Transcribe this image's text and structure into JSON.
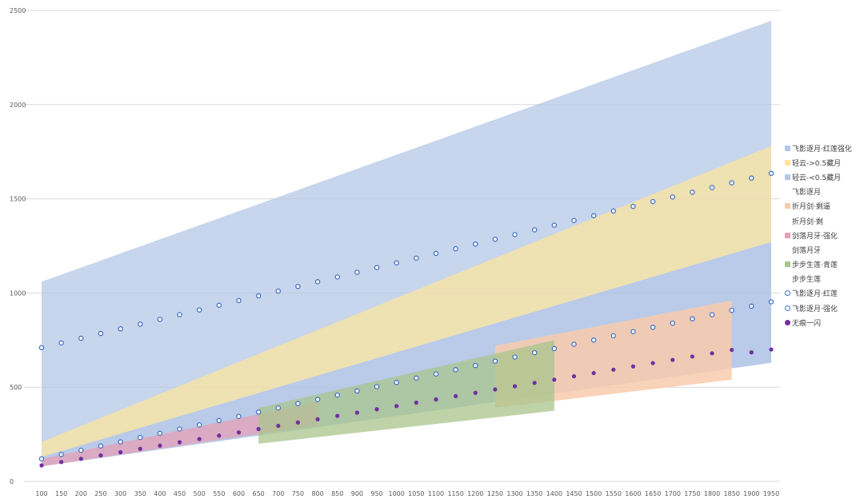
{
  "chart_data": {
    "type": "area",
    "title": "",
    "xlabel": "",
    "ylabel": "",
    "ylim": [
      0,
      2500
    ],
    "y_ticks": [
      0,
      500,
      1000,
      1500,
      2000,
      2500
    ],
    "x_ticks": [
      100,
      150,
      200,
      250,
      300,
      350,
      400,
      450,
      500,
      550,
      600,
      650,
      700,
      750,
      800,
      850,
      900,
      950,
      1000,
      1050,
      1100,
      1150,
      1200,
      1250,
      1300,
      1350,
      1400,
      1450,
      1500,
      1550,
      1600,
      1650,
      1700,
      1750,
      1800,
      1850,
      1900,
      1950
    ],
    "grid": "horizontal",
    "legend_position": "right",
    "bands": [
      {
        "name": "飞影逐月·红莲强化",
        "color": "#B4C7E7",
        "opacity": 0.75,
        "x": [
          100,
          1950
        ],
        "low": [
          80,
          630
        ],
        "high": [
          1060,
          2445
        ]
      },
      {
        "name": "轻云->0.5藏月",
        "color": "#FFE699",
        "opacity": 0.7,
        "x": [
          100,
          1950
        ],
        "low": [
          130,
          1270
        ],
        "high": [
          210,
          1780
        ]
      },
      {
        "name": "轻云-<0.5藏月",
        "color": "#B4C7E7",
        "opacity": 0.75,
        "x": [
          100,
          1950
        ],
        "low": [
          80,
          630
        ],
        "high": [
          130,
          1270
        ]
      },
      {
        "name": "折月剑·剩逼",
        "color": "#F8CBAD",
        "opacity": 0.85,
        "x": [
          1250,
          1850
        ],
        "low": [
          390,
          540
        ],
        "high": [
          720,
          960
        ]
      },
      {
        "name": "剑落月牙·强化",
        "color": "#E6A0B4",
        "opacity": 0.75,
        "x": [
          100,
          800
        ],
        "low": [
          80,
          300
        ],
        "high": [
          120,
          420
        ]
      },
      {
        "name": "步步生莲·青莲",
        "color": "#A9C48C",
        "opacity": 0.75,
        "x": [
          650,
          1400
        ],
        "low": [
          200,
          375
        ],
        "high": [
          390,
          750
        ]
      }
    ],
    "legend_text_only": [
      "飞影逐月",
      "折月剑·剩",
      "剑落月牙",
      "步步生莲"
    ],
    "scatter": [
      {
        "name": "飞影逐月·红莲",
        "style": "ring",
        "color": "#4472C4",
        "x": [
          100,
          150,
          200,
          250,
          300,
          350,
          400,
          450,
          500,
          550,
          600,
          650,
          700,
          750,
          800,
          850,
          900,
          950,
          1000,
          1050,
          1100,
          1150,
          1200,
          1250,
          1300,
          1350,
          1400,
          1450,
          1500,
          1550,
          1600,
          1650,
          1700,
          1750,
          1800,
          1850,
          1900,
          1950
        ],
        "y": [
          710,
          735,
          760,
          785,
          810,
          835,
          860,
          885,
          910,
          935,
          960,
          985,
          1010,
          1035,
          1060,
          1085,
          1110,
          1135,
          1160,
          1185,
          1210,
          1235,
          1260,
          1285,
          1310,
          1335,
          1360,
          1385,
          1410,
          1435,
          1460,
          1485,
          1510,
          1535,
          1560,
          1585,
          1610,
          1635
        ]
      },
      {
        "name": "飞影逐月·强化",
        "style": "ring",
        "color": "#4472C4",
        "x": [
          100,
          150,
          200,
          250,
          300,
          350,
          400,
          450,
          500,
          550,
          600,
          650,
          700,
          750,
          800,
          850,
          900,
          950,
          1000,
          1050,
          1100,
          1150,
          1200,
          1250,
          1300,
          1350,
          1400,
          1450,
          1500,
          1550,
          1600,
          1650,
          1700,
          1750,
          1800,
          1850,
          1900,
          1950
        ],
        "y": [
          120,
          143,
          165,
          188,
          210,
          233,
          255,
          278,
          300,
          323,
          345,
          368,
          390,
          413,
          435,
          458,
          480,
          503,
          525,
          548,
          570,
          593,
          615,
          638,
          660,
          683,
          705,
          728,
          750,
          773,
          795,
          818,
          840,
          863,
          885,
          908,
          930,
          953
        ]
      },
      {
        "name": "无痕一闪",
        "style": "dot",
        "color": "#7030A0",
        "x": [
          100,
          150,
          200,
          250,
          300,
          350,
          400,
          450,
          500,
          550,
          600,
          650,
          700,
          750,
          800,
          850,
          900,
          950,
          1000,
          1050,
          1100,
          1150,
          1200,
          1250,
          1300,
          1350,
          1400,
          1450,
          1500,
          1550,
          1600,
          1650,
          1700,
          1750,
          1800,
          1850,
          1900,
          1950
        ],
        "y": [
          85,
          103,
          120,
          138,
          155,
          173,
          190,
          208,
          225,
          243,
          260,
          278,
          295,
          313,
          330,
          348,
          365,
          383,
          400,
          418,
          435,
          453,
          470,
          488,
          505,
          523,
          540,
          558,
          575,
          593,
          610,
          628,
          645,
          663,
          680,
          698,
          685,
          700
        ]
      }
    ]
  },
  "legend": [
    {
      "label": "飞影逐月·红莲强化",
      "swatch": "square",
      "color": "#B4C7E7"
    },
    {
      "label": "轻云->0.5藏月",
      "swatch": "square",
      "color": "#FFE699"
    },
    {
      "label": "轻云-<0.5藏月",
      "swatch": "square",
      "color": "#B4C7E7"
    },
    {
      "label": "飞影逐月",
      "swatch": "none",
      "color": ""
    },
    {
      "label": "折月剑·剩逼",
      "swatch": "square",
      "color": "#F8CBAD"
    },
    {
      "label": "折月剑·剩",
      "swatch": "none",
      "color": ""
    },
    {
      "label": "剑落月牙·强化",
      "swatch": "square",
      "color": "#E6A0B4"
    },
    {
      "label": "剑落月牙",
      "swatch": "none",
      "color": ""
    },
    {
      "label": "步步生莲·青莲",
      "swatch": "square",
      "color": "#A9C48C"
    },
    {
      "label": "步步生莲",
      "swatch": "none",
      "color": ""
    },
    {
      "label": "飞影逐月·红莲",
      "swatch": "ring",
      "color": "#4472C4"
    },
    {
      "label": "飞影逐月·强化",
      "swatch": "ring",
      "color": "#4472C4"
    },
    {
      "label": "无痕一闪",
      "swatch": "dot",
      "color": "#7030A0"
    }
  ]
}
